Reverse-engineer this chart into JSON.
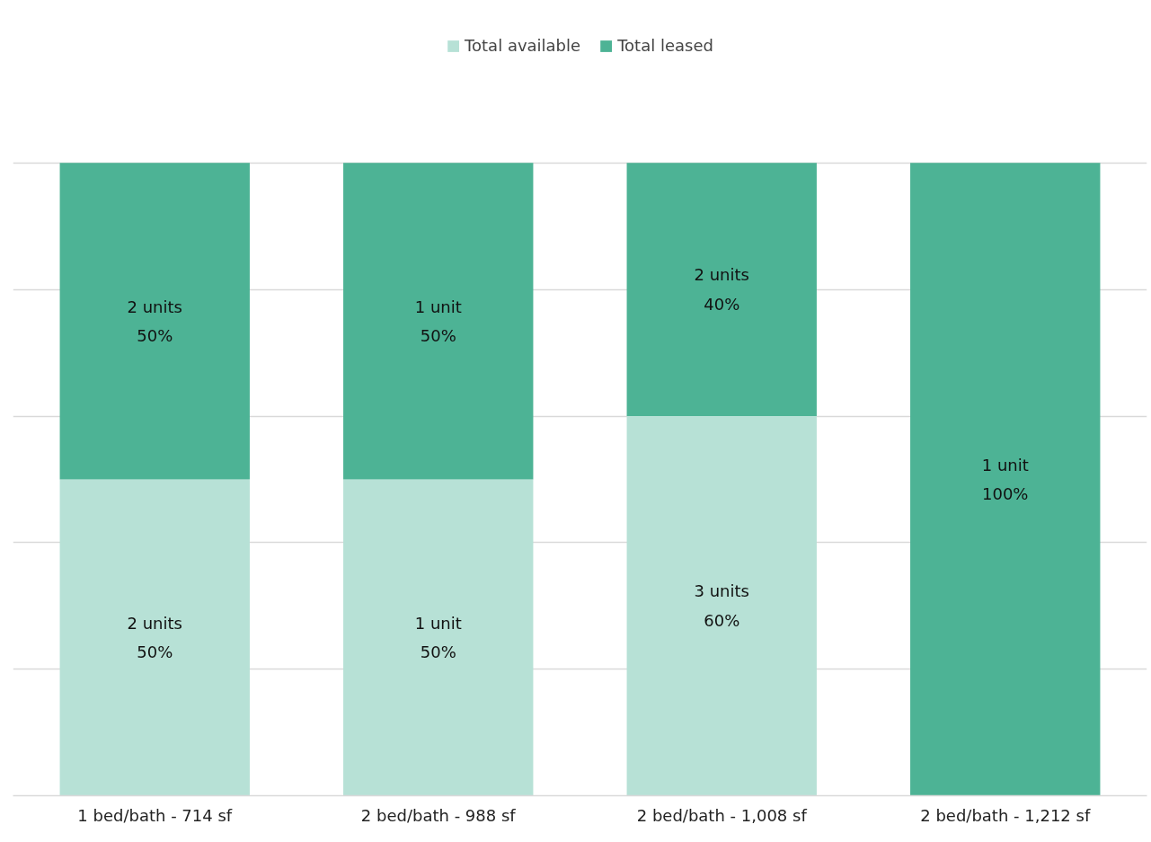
{
  "chart_data": {
    "type": "bar",
    "stacked": true,
    "categories": [
      "1 bed/bath - 714 sf",
      "2 bed/bath - 988 sf",
      "2 bed/bath - 1,008 sf",
      "2 bed/bath - 1,212 sf"
    ],
    "series": [
      {
        "name": "Total available",
        "color": "#b7e1d6",
        "values": [
          50,
          50,
          60,
          0
        ],
        "value_labels": [
          "2 units\n50%",
          "1 unit\n50%",
          "3 units\n60%",
          null
        ]
      },
      {
        "name": "Total leased",
        "color": "#4db395",
        "values": [
          50,
          50,
          40,
          100
        ],
        "value_labels": [
          "2 units\n50%",
          "1 unit\n50%",
          "2 units\n40%",
          "1 unit\n100%"
        ]
      }
    ],
    "ylim": [
      0,
      120
    ],
    "yticks": [
      {
        "value": 0,
        "label": null
      },
      {
        "value": 20,
        "label": null
      },
      {
        "value": 40,
        "label": null
      },
      {
        "value": 60,
        "label": null
      },
      {
        "value": 80,
        "label": null
      },
      {
        "value": 100,
        "label": null
      }
    ],
    "grid": "y",
    "legend": "top",
    "tick_labels": "x"
  }
}
